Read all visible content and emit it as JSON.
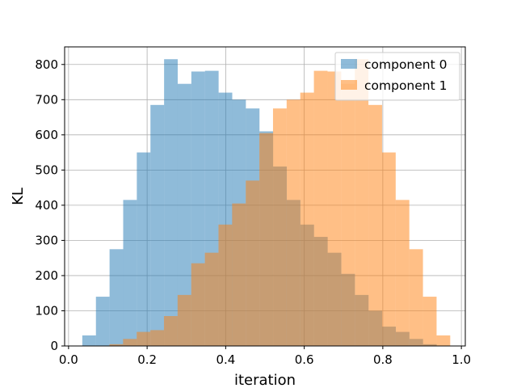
{
  "chart_data": {
    "type": "bar",
    "title": "",
    "xlabel": "iteration",
    "ylabel": "KL",
    "xlim": [
      -0.01,
      1.01
    ],
    "ylim": [
      0,
      850
    ],
    "xticks": [
      "0.0",
      "0.2",
      "0.4",
      "0.6",
      "0.8",
      "1.0"
    ],
    "xtick_values": [
      0.0,
      0.2,
      0.4,
      0.6,
      0.8,
      1.0
    ],
    "yticks": [
      "0",
      "100",
      "200",
      "300",
      "400",
      "500",
      "600",
      "700",
      "800"
    ],
    "ytick_values": [
      0,
      100,
      200,
      300,
      400,
      500,
      600,
      700,
      800
    ],
    "grid": true,
    "legend_position": "top-right",
    "series": [
      {
        "name": "component 0",
        "color": "#1f77b4",
        "opacity": 0.5,
        "bin_start": 0.035,
        "bin_width": 0.0347,
        "values": [
          30,
          140,
          275,
          415,
          550,
          685,
          815,
          745,
          780,
          782,
          720,
          700,
          675,
          610,
          510,
          415,
          345,
          310,
          265,
          205,
          145,
          100,
          55,
          40,
          20,
          5
        ]
      },
      {
        "name": "component 1",
        "color": "#ff7f0e",
        "opacity": 0.5,
        "bin_start": 0.0,
        "bin_width": 0.0347,
        "values": [
          0,
          0,
          0,
          5,
          20,
          40,
          45,
          85,
          145,
          235,
          265,
          345,
          405,
          470,
          605,
          675,
          700,
          720,
          782,
          780,
          745,
          815,
          685,
          550,
          415,
          275,
          140,
          30
        ]
      }
    ]
  }
}
